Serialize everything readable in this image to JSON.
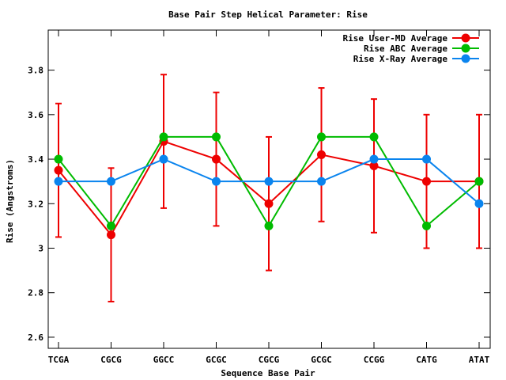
{
  "chart_data": {
    "type": "line",
    "title": "Base Pair Step Helical Parameter: Rise",
    "xlabel": "Sequence Base Pair",
    "ylabel": "Rise (Angstroms)",
    "categories": [
      "TCGA",
      "CGCG",
      "GGCC",
      "GCGC",
      "CGCG",
      "GCGC",
      "CCGG",
      "CATG",
      "ATAT"
    ],
    "ylim": [
      2.55,
      3.98
    ],
    "yticks": [
      2.6,
      2.8,
      3,
      3.2,
      3.4,
      3.6,
      3.8
    ],
    "ytick_labels": [
      "2.6",
      "2.8",
      "3",
      "3.2",
      "3.4",
      "3.6",
      "3.8"
    ],
    "grid": false,
    "legend_position": "top-right",
    "series": [
      {
        "name": "Rise User-MD Average",
        "color": "#ee0000",
        "values": [
          3.35,
          3.06,
          3.48,
          3.4,
          3.2,
          3.42,
          3.37,
          3.3,
          3.3
        ],
        "error": [
          0.3,
          0.3,
          0.3,
          0.3,
          0.3,
          0.3,
          0.3,
          0.3,
          0.3
        ]
      },
      {
        "name": "Rise ABC Average",
        "color": "#00bb00",
        "values": [
          3.4,
          3.1,
          3.5,
          3.5,
          3.1,
          3.5,
          3.5,
          3.1,
          3.3
        ]
      },
      {
        "name": "Rise X-Ray Average",
        "color": "#0a84ee",
        "values": [
          3.3,
          3.3,
          3.4,
          3.3,
          3.3,
          3.3,
          3.4,
          3.4,
          3.2
        ]
      }
    ]
  }
}
